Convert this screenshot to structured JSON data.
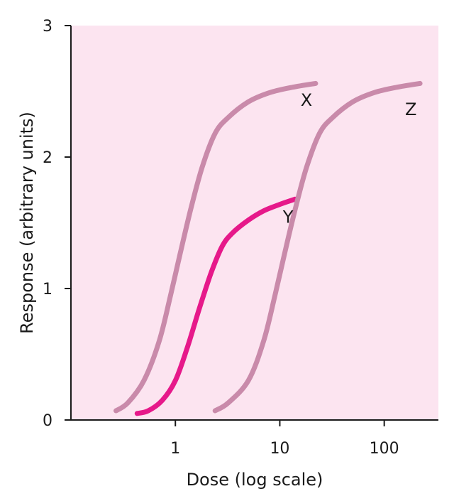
{
  "chart_data": {
    "type": "line",
    "xlabel": "Dose (log scale)",
    "ylabel": "Response (arbitrary units)",
    "x_scale": "log",
    "xlim": [
      0.1,
      330
    ],
    "ylim": [
      0,
      3
    ],
    "x_ticks": [
      {
        "value": 1,
        "label": "1"
      },
      {
        "value": 10,
        "label": "10"
      },
      {
        "value": 100,
        "label": "100"
      }
    ],
    "y_ticks": [
      {
        "value": 0,
        "label": "0"
      },
      {
        "value": 1,
        "label": "1"
      },
      {
        "value": 2,
        "label": "2"
      },
      {
        "value": 3,
        "label": "3"
      }
    ],
    "grid": false,
    "plot_background": "#fce4f0",
    "series": [
      {
        "name": "X",
        "color": "#c98aaa",
        "x": [
          0.27,
          0.35,
          0.5,
          0.7,
          0.9,
          1.1,
          1.4,
          1.8,
          2.4,
          3.2,
          5,
          8,
          13,
          22
        ],
        "y": [
          0.07,
          0.13,
          0.3,
          0.6,
          0.95,
          1.25,
          1.6,
          1.92,
          2.18,
          2.3,
          2.42,
          2.49,
          2.53,
          2.56
        ]
      },
      {
        "name": "Y",
        "color": "#e6198a",
        "x": [
          0.43,
          0.55,
          0.75,
          1,
          1.3,
          1.7,
          2.2,
          2.8,
          3.5,
          5,
          7,
          10,
          14
        ],
        "y": [
          0.05,
          0.07,
          0.15,
          0.3,
          0.55,
          0.85,
          1.12,
          1.32,
          1.42,
          1.52,
          1.59,
          1.64,
          1.68
        ]
      },
      {
        "name": "Z",
        "color": "#c98aaa",
        "x": [
          2.4,
          3.2,
          5,
          7,
          9,
          11,
          14,
          18,
          24,
          32,
          50,
          80,
          130,
          220
        ],
        "y": [
          0.07,
          0.13,
          0.3,
          0.6,
          0.95,
          1.25,
          1.6,
          1.92,
          2.18,
          2.3,
          2.42,
          2.49,
          2.53,
          2.56
        ]
      }
    ],
    "labels": [
      {
        "series": "X",
        "text": "X",
        "x": 18,
        "y": 2.39
      },
      {
        "series": "Y",
        "text": "Y",
        "x": 12,
        "y": 1.5
      },
      {
        "series": "Z",
        "text": "Z",
        "x": 180,
        "y": 2.32
      }
    ]
  }
}
